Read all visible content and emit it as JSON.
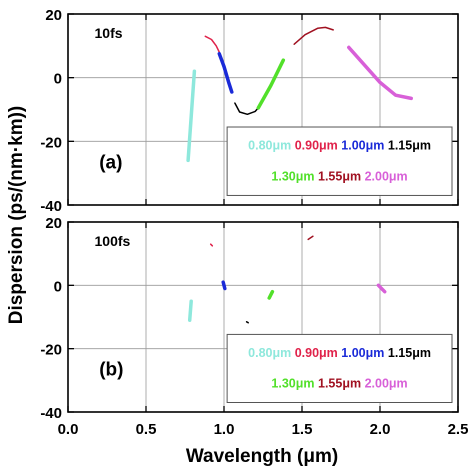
{
  "chart_data": [
    {
      "type": "line",
      "panel_label": "(a)",
      "annotation": "10fs",
      "xlim": [
        0,
        2.5
      ],
      "ylim": [
        -40,
        20
      ],
      "grid": true,
      "legend_position": "lower-right",
      "legend_rows": [
        [
          {
            "label": "0.80μm",
            "color": "#8ee8dc"
          },
          {
            "label": "0.90μm",
            "color": "#e0224a"
          },
          {
            "label": "1.00μm",
            "color": "#1a2ad8"
          },
          {
            "label": "1.15μm",
            "color": "#000000"
          }
        ],
        [
          {
            "label": "1.30μm",
            "color": "#52e02a"
          },
          {
            "label": "1.55μm",
            "color": "#a01020"
          },
          {
            "label": "2.00μm",
            "color": "#d860d8"
          }
        ]
      ],
      "series": [
        {
          "name": "0.80μm",
          "color": "#8ee8dc",
          "width": 3.5,
          "x": [
            0.77,
            0.81
          ],
          "y": [
            -26,
            2
          ]
        },
        {
          "name": "0.90μm",
          "color": "#e0224a",
          "width": 1.5,
          "x": [
            0.88,
            0.92,
            0.95,
            0.97
          ],
          "y": [
            13,
            12,
            10,
            8
          ]
        },
        {
          "name": "1.00μm",
          "color": "#1a2ad8",
          "width": 3.5,
          "x": [
            0.97,
            1.0,
            1.03,
            1.05
          ],
          "y": [
            7.5,
            3.5,
            -1.5,
            -4.5
          ]
        },
        {
          "name": "1.15μm",
          "color": "#000000",
          "width": 1.5,
          "x": [
            1.07,
            1.1,
            1.15,
            1.2,
            1.22
          ],
          "y": [
            -8,
            -10.8,
            -11.5,
            -10.6,
            -9.5
          ]
        },
        {
          "name": "1.30μm",
          "color": "#52e02a",
          "width": 3.5,
          "x": [
            1.22,
            1.3,
            1.38
          ],
          "y": [
            -9.5,
            -2.5,
            5.5
          ]
        },
        {
          "name": "1.55μm",
          "color": "#a01020",
          "width": 1.5,
          "x": [
            1.45,
            1.52,
            1.6,
            1.65,
            1.7
          ],
          "y": [
            10.5,
            13.5,
            15.5,
            15.8,
            15
          ]
        },
        {
          "name": "2.00μm",
          "color": "#d860d8",
          "width": 3.5,
          "x": [
            1.8,
            1.9,
            2.0,
            2.1,
            2.2
          ],
          "y": [
            9.5,
            4,
            -1.5,
            -5.5,
            -6.5
          ]
        }
      ]
    },
    {
      "type": "line",
      "panel_label": "(b)",
      "annotation": "100fs",
      "xlim": [
        0,
        2.5
      ],
      "ylim": [
        -40,
        20
      ],
      "grid": true,
      "legend_position": "lower-right",
      "legend_rows": [
        [
          {
            "label": "0.80μm",
            "color": "#8ee8dc"
          },
          {
            "label": "0.90μm",
            "color": "#e0224a"
          },
          {
            "label": "1.00μm",
            "color": "#1a2ad8"
          },
          {
            "label": "1.15μm",
            "color": "#000000"
          }
        ],
        [
          {
            "label": "1.30μm",
            "color": "#52e02a"
          },
          {
            "label": "1.55μm",
            "color": "#a01020"
          },
          {
            "label": "2.00μm",
            "color": "#d860d8"
          }
        ]
      ],
      "series": [
        {
          "name": "0.80μm",
          "color": "#8ee8dc",
          "width": 3.5,
          "x": [
            0.78,
            0.79
          ],
          "y": [
            -11,
            -5
          ]
        },
        {
          "name": "0.90μm",
          "color": "#e0224a",
          "width": 1.5,
          "x": [
            0.915,
            0.925
          ],
          "y": [
            13,
            12.5
          ]
        },
        {
          "name": "1.00μm",
          "color": "#1a2ad8",
          "width": 3.5,
          "x": [
            0.995,
            1.005
          ],
          "y": [
            1,
            -1
          ]
        },
        {
          "name": "1.15μm",
          "color": "#000000",
          "width": 1.5,
          "x": [
            1.145,
            1.155
          ],
          "y": [
            -11.5,
            -11.8
          ]
        },
        {
          "name": "1.30μm",
          "color": "#52e02a",
          "width": 3.5,
          "x": [
            1.29,
            1.31
          ],
          "y": [
            -4,
            -2
          ]
        },
        {
          "name": "1.55μm",
          "color": "#a01020",
          "width": 1.5,
          "x": [
            1.54,
            1.57
          ],
          "y": [
            14.5,
            15.5
          ]
        },
        {
          "name": "2.00μm",
          "color": "#d860d8",
          "width": 3.5,
          "x": [
            1.99,
            2.03
          ],
          "y": [
            0,
            -2
          ]
        }
      ]
    }
  ],
  "xaxis": {
    "label": "Wavelength (μm)",
    "ticks": [
      0.0,
      0.5,
      1.0,
      1.5,
      2.0,
      2.5
    ],
    "tick_labels": [
      "0.0",
      "0.5",
      "1.0",
      "1.5",
      "2.0",
      "2.5"
    ]
  },
  "yaxis": {
    "label": "Dispersion (ps/(nm·km))",
    "ticks": [
      -40,
      -20,
      0,
      20
    ],
    "tick_labels": [
      "-40",
      "-20",
      "0",
      "20"
    ]
  },
  "colors": {
    "grid": "#9a9a9a",
    "axis": "#000000",
    "background": "#ffffff"
  }
}
